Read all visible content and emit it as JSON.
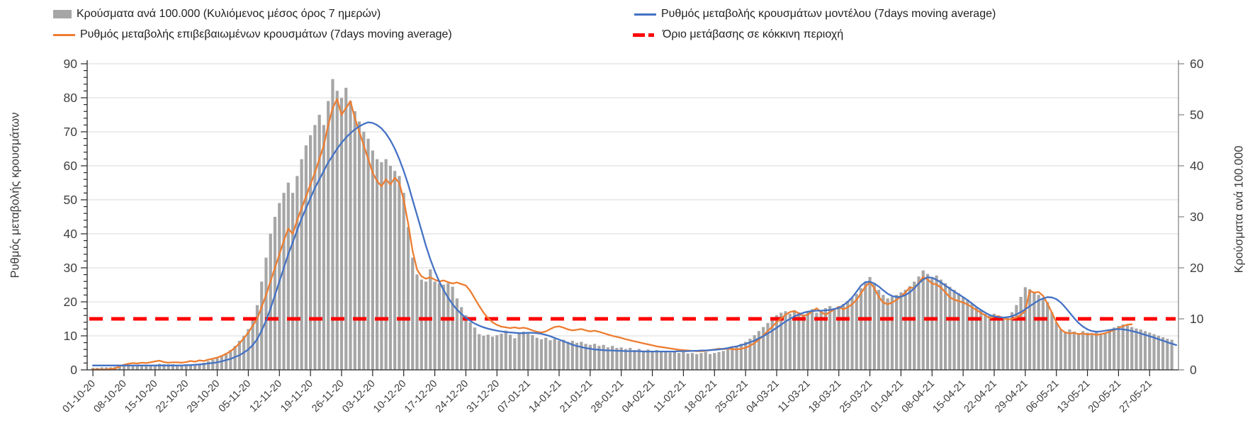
{
  "legend": {
    "items": [
      {
        "name": "cases-per-100k-bars",
        "label": "Κρούσματα ανά 100.000 (Κυλιόμενος μέσος όρος 7 ημερών)",
        "swatch": "bar",
        "color": "#a6a6a6"
      },
      {
        "name": "confirmed-rate-line",
        "label": "Ρυθμός μεταβολής επιβεβαιωμένων κρουσμάτων (7days moving average)",
        "swatch": "line",
        "color": "#ed7d31"
      },
      {
        "name": "model-rate-line",
        "label": "Ρυθμός μεταβολής κρουσμάτων μοντέλου (7days moving average)",
        "swatch": "line",
        "color": "#4472c4"
      },
      {
        "name": "red-zone-threshold",
        "label": "Όριο μετάβασης σε κόκκινη περιοχή",
        "swatch": "dash",
        "color": "#ff0000"
      }
    ]
  },
  "chart_data": {
    "type": "combo",
    "left_axis": {
      "title": "Ρυθμός μεταβολής κρουσμάτων",
      "min": 0,
      "max": 90,
      "step": 10,
      "minor_step": 2,
      "tick_values": [
        0,
        10,
        20,
        30,
        40,
        50,
        60,
        70,
        80,
        90
      ]
    },
    "right_axis": {
      "title": "Κρούσματα ανά 100.000",
      "min": 0,
      "max": 60,
      "step": 10,
      "tick_values": [
        0,
        10,
        20,
        30,
        40,
        50,
        60
      ]
    },
    "x": {
      "start_date": "01-10-20",
      "end_date": "01-06-21",
      "days_per_tick": 7,
      "tick_labels": [
        "01-10-20",
        "08-10-20",
        "15-10-20",
        "22-10-20",
        "29-10-20",
        "05-11-20",
        "12-11-20",
        "19-11-20",
        "26-11-20",
        "03-12-20",
        "10-12-20",
        "17-12-20",
        "24-12-20",
        "31-12-20",
        "07-01-21",
        "14-01-21",
        "21-01-21",
        "28-01-21",
        "04-02-21",
        "11-02-21",
        "18-02-21",
        "25-02-21",
        "04-03-21",
        "11-03-21",
        "18-03-21",
        "25-03-21",
        "01-04-21",
        "08-04-21",
        "15-04-21",
        "22-04-21",
        "29-04-21",
        "06-05-21",
        "13-05-21",
        "20-05-21",
        "27-05-21"
      ]
    },
    "threshold": {
      "label": "Όριο μετάβασης σε κόκκινη περιοχή",
      "axis": "right",
      "value": 10,
      "value_on_left_axis": 15,
      "color": "#ff0000"
    },
    "grid": {
      "horizontal": true,
      "color": "#d9d9d9"
    },
    "series": [
      {
        "name": "Κρούσματα ανά 100.000 (Κυλιόμενος μέσος όρος 7 ημερών)",
        "type": "bar",
        "axis": "right",
        "color": "#a6a6a6",
        "values": [
          0.4,
          0.4,
          0.5,
          0.5,
          0.5,
          0.6,
          0.7,
          0.8,
          0.8,
          0.7,
          1.0,
          0.9,
          0.8,
          0.8,
          1.0,
          1.2,
          1.1,
          1.1,
          1.1,
          0.9,
          0.9,
          0.9,
          0.9,
          1.1,
          1.2,
          1.4,
          1.7,
          2.0,
          2.3,
          2.8,
          3.3,
          3.9,
          4.7,
          5.7,
          6.7,
          8.0,
          10.0,
          12.7,
          17.3,
          22.0,
          26.7,
          30.0,
          32.7,
          34.7,
          36.7,
          34.7,
          38.0,
          41.3,
          44.0,
          46.0,
          48.0,
          50.0,
          48.0,
          52.7,
          57.0,
          54.7,
          53.3,
          55.3,
          52.7,
          50.7,
          48.7,
          46.7,
          45.3,
          43.0,
          41.3,
          40.7,
          41.3,
          40.0,
          39.0,
          38.0,
          34.7,
          28.0,
          22.0,
          18.7,
          17.7,
          17.3,
          19.7,
          17.3,
          17.0,
          16.7,
          17.0,
          16.3,
          14.0,
          12.3,
          10.7,
          9.3,
          8.3,
          7.0,
          6.7,
          6.9,
          6.5,
          6.8,
          7.1,
          7.7,
          6.9,
          6.2,
          7.2,
          7.5,
          7.1,
          6.8,
          6.3,
          6.0,
          6.3,
          5.8,
          6.1,
          5.7,
          5.9,
          5.5,
          5.7,
          5.3,
          5.5,
          5.1,
          4.9,
          5.1,
          4.7,
          4.9,
          4.4,
          4.7,
          4.3,
          4.4,
          4.1,
          4.3,
          3.9,
          4.1,
          3.8,
          4.0,
          3.7,
          3.9,
          3.5,
          3.7,
          3.4,
          3.6,
          3.3,
          3.5,
          3.2,
          3.3,
          3.1,
          3.3,
          3.5,
          3.1,
          3.3,
          3.5,
          3.7,
          4.0,
          4.3,
          4.7,
          5.1,
          5.5,
          6.1,
          6.8,
          7.6,
          8.4,
          9.2,
          10.0,
          10.7,
          11.2,
          11.5,
          11.0,
          11.7,
          11.3,
          10.9,
          11.5,
          11.9,
          11.2,
          11.7,
          12.1,
          12.5,
          12.1,
          12.5,
          12.9,
          13.5,
          14.1,
          14.9,
          16.0,
          17.3,
          18.2,
          17.0,
          15.7,
          14.7,
          14.0,
          14.3,
          14.7,
          15.2,
          15.7,
          16.4,
          17.3,
          18.3,
          19.5,
          18.8,
          18.1,
          18.5,
          17.7,
          17.0,
          16.3,
          15.7,
          15.0,
          14.3,
          13.7,
          13.0,
          12.3,
          11.7,
          11.0,
          10.7,
          11.0,
          10.3,
          10.0,
          10.5,
          11.3,
          12.7,
          14.3,
          16.2,
          15.8,
          15.3,
          14.7,
          14.0,
          13.3,
          11.3,
          9.3,
          8.0,
          7.5,
          7.9,
          7.5,
          7.2,
          7.6,
          7.3,
          7.0,
          7.5,
          7.1,
          7.3,
          7.9,
          8.3,
          8.6,
          8.9,
          8.7,
          8.4,
          8.1,
          7.9,
          7.6,
          7.3,
          7.0,
          6.7,
          6.4,
          6.1,
          5.9
        ]
      },
      {
        "name": "Ρυθμός μεταβολής επιβεβαιωμένων κρουσμάτων (7days moving average)",
        "type": "line",
        "axis": "left",
        "color": "#ed7d31",
        "values": [
          0.1,
          0.1,
          0.1,
          0.1,
          0.3,
          0.4,
          1.0,
          1.5,
          1.8,
          2.0,
          1.9,
          2.1,
          2.0,
          2.2,
          2.5,
          2.7,
          2.3,
          2.1,
          2.2,
          2.2,
          2.1,
          2.3,
          2.6,
          2.4,
          2.8,
          2.6,
          3.0,
          3.3,
          3.6,
          4.1,
          4.7,
          5.5,
          6.5,
          7.8,
          9.3,
          11.0,
          13.0,
          15.0,
          18.5,
          22.0,
          26.0,
          30.0,
          34.0,
          38.0,
          41.5,
          40.0,
          44.0,
          47.5,
          51.0,
          54.5,
          58.0,
          62.0,
          66.0,
          72.0,
          77.0,
          79.6,
          75.0,
          77.0,
          79.0,
          74.0,
          70.0,
          66.0,
          62.0,
          58.0,
          55.5,
          54.0,
          56.0,
          54.5,
          56.5,
          55.0,
          50.0,
          43.0,
          35.0,
          29.5,
          27.5,
          26.8,
          27.2,
          26.5,
          26.0,
          26.3,
          25.8,
          25.4,
          25.7,
          25.2,
          24.8,
          23.2,
          21.0,
          18.8,
          16.8,
          15.2,
          14.0,
          13.2,
          12.7,
          12.5,
          12.3,
          12.5,
          12.2,
          12.4,
          12.1,
          11.6,
          11.2,
          11.0,
          11.3,
          12.0,
          12.6,
          12.8,
          12.4,
          11.9,
          11.6,
          11.8,
          12.0,
          11.6,
          11.3,
          11.5,
          11.2,
          10.8,
          10.4,
          10.0,
          9.7,
          9.4,
          9.0,
          8.7,
          8.4,
          8.1,
          7.8,
          7.5,
          7.2,
          6.9,
          6.7,
          6.5,
          6.3,
          6.1,
          5.9,
          5.8,
          5.7,
          5.6,
          5.5,
          5.5,
          5.6,
          5.8,
          6.0,
          6.2,
          6.1,
          6.3,
          6.1,
          6.0,
          6.2,
          6.5,
          7.1,
          7.9,
          8.9,
          10.1,
          11.4,
          12.7,
          14.0,
          15.1,
          16.2,
          17.0,
          17.3,
          16.6,
          15.8,
          16.2,
          17.2,
          18.1,
          17.0,
          16.2,
          17.0,
          17.8,
          18.5,
          17.8,
          18.4,
          19.3,
          20.6,
          22.5,
          24.5,
          25.8,
          24.0,
          21.5,
          19.8,
          19.3,
          19.8,
          20.6,
          21.6,
          22.8,
          24.2,
          24.0,
          25.6,
          27.3,
          26.6,
          25.4,
          25.1,
          24.2,
          22.8,
          21.4,
          20.6,
          20.2,
          19.8,
          19.2,
          18.4,
          17.6,
          16.8,
          16.0,
          15.2,
          15.6,
          15.8,
          15.3,
          14.8,
          15.0,
          15.4,
          16.2,
          17.3,
          23.2,
          22.7,
          22.9,
          21.8,
          19.5,
          16.8,
          14.0,
          11.9,
          11.0,
          10.7,
          10.9,
          10.5,
          10.7,
          10.4,
          10.6,
          10.3,
          10.5,
          10.8,
          11.2,
          11.7,
          12.3,
          12.9,
          13.3,
          13.4
        ]
      },
      {
        "name": "Ρυθμός μεταβολής κρουσμάτων μοντέλου (7days moving average)",
        "type": "line",
        "axis": "left",
        "color": "#4472c4",
        "values": [
          1.3,
          1.3,
          1.3,
          1.3,
          1.3,
          1.3,
          1.3,
          1.3,
          1.3,
          1.3,
          1.3,
          1.3,
          1.3,
          1.3,
          1.3,
          1.3,
          1.3,
          1.3,
          1.3,
          1.3,
          1.3,
          1.4,
          1.4,
          1.5,
          1.6,
          1.7,
          1.9,
          2.0,
          2.2,
          2.5,
          2.9,
          3.2,
          3.8,
          4.3,
          5.1,
          6.0,
          7.3,
          9.0,
          11.5,
          14.5,
          18.0,
          22.0,
          26.0,
          30.0,
          34.0,
          37.5,
          41.0,
          44.5,
          47.5,
          50.5,
          53.5,
          56.0,
          58.5,
          61.0,
          63.0,
          65.0,
          66.8,
          68.3,
          69.6,
          70.7,
          71.6,
          72.3,
          72.8,
          72.6,
          72.0,
          71.0,
          69.5,
          67.5,
          65.0,
          62.0,
          58.5,
          54.5,
          50.0,
          45.5,
          41.0,
          36.5,
          32.5,
          29.0,
          26.0,
          23.4,
          21.2,
          19.3,
          17.7,
          16.4,
          15.3,
          14.4,
          13.6,
          13.0,
          12.5,
          12.1,
          11.8,
          11.5,
          11.3,
          11.1,
          11.0,
          10.9,
          10.8,
          10.8,
          10.9,
          10.9,
          10.8,
          10.6,
          10.3,
          9.9,
          9.4,
          8.9,
          8.4,
          7.9,
          7.4,
          7.0,
          6.7,
          6.4,
          6.2,
          6.0,
          5.9,
          5.8,
          5.7,
          5.7,
          5.6,
          5.6,
          5.5,
          5.5,
          5.5,
          5.5,
          5.4,
          5.4,
          5.4,
          5.4,
          5.4,
          5.4,
          5.4,
          5.4,
          5.5,
          5.5,
          5.5,
          5.6,
          5.6,
          5.7,
          5.7,
          5.8,
          5.9,
          6.0,
          6.2,
          6.4,
          6.7,
          6.9,
          7.3,
          7.6,
          8.1,
          8.6,
          9.3,
          9.9,
          10.7,
          11.5,
          12.4,
          13.3,
          14.2,
          15.0,
          15.7,
          16.3,
          16.8,
          17.1,
          17.3,
          17.4,
          17.4,
          17.5,
          17.6,
          17.9,
          18.2,
          19.0,
          20.0,
          21.3,
          23.0,
          24.8,
          25.8,
          25.9,
          25.4,
          24.5,
          23.4,
          22.4,
          21.7,
          21.4,
          21.5,
          22.0,
          22.8,
          24.0,
          25.4,
          26.6,
          27.2,
          27.1,
          26.5,
          25.7,
          24.8,
          23.9,
          23.0,
          22.2,
          21.4,
          20.5,
          19.5,
          18.5,
          17.6,
          16.8,
          16.1,
          15.7,
          15.5,
          15.4,
          15.5,
          15.8,
          16.3,
          17.0,
          17.8,
          18.7,
          19.6,
          20.4,
          21.0,
          21.4,
          21.3,
          20.8,
          19.8,
          18.4,
          16.8,
          15.2,
          13.8,
          12.7,
          11.9,
          11.4,
          11.2,
          11.3,
          11.5,
          11.7,
          11.9,
          12.0,
          11.9,
          11.7,
          11.4,
          11.1,
          10.7,
          10.3,
          9.9,
          9.5,
          9.0,
          8.6,
          8.1,
          7.7,
          7.3
        ]
      }
    ]
  }
}
